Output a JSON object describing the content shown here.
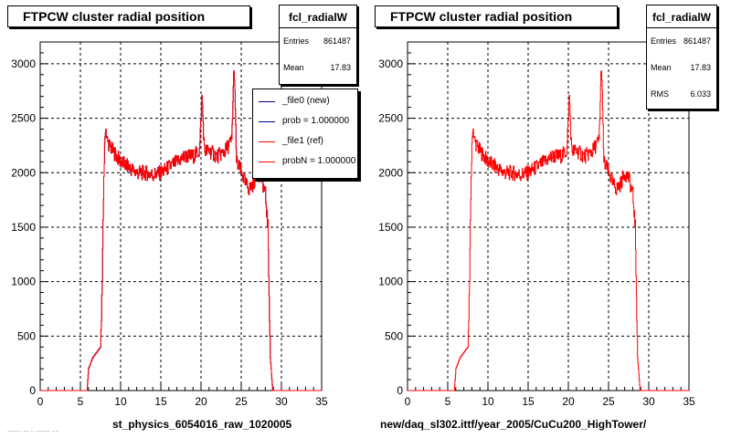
{
  "colors": {
    "new": "#00007f",
    "ref": "#ff0000",
    "grid": "#000000",
    "frame": "#000000"
  },
  "panels": [
    {
      "title": "FTPCW cluster radial position",
      "xcaption": "st_physics_6054016_raw_1020005",
      "stats": {
        "name": "fcl_radialW",
        "rows": [
          {
            "label": "Entries",
            "value": "861487"
          },
          {
            "label": "Mean",
            "value": "17.83"
          }
        ]
      },
      "legend": [
        {
          "label": "_file0 (new)",
          "color": "#00007f"
        },
        {
          "label": "prob = 1.000000",
          "color": "#00007f"
        },
        {
          "label": "_file1 (ref)",
          "color": "#ff0000"
        },
        {
          "label": "probN = 1.000000",
          "color": "#ff0000"
        }
      ]
    },
    {
      "title": "FTPCW cluster radial position",
      "xcaption": "new/daq_sl302.ittf/year_2005/CuCu200_HighTower/",
      "stats": {
        "name": "fcl_radialW",
        "rows": [
          {
            "label": "Entries",
            "value": "861487"
          },
          {
            "label": "Mean",
            "value": "17.83"
          },
          {
            "label": "RMS",
            "value": "6.033"
          }
        ]
      },
      "legend": []
    }
  ],
  "footer": "........ ... .. ........ ....",
  "chart_data": [
    {
      "type": "line",
      "title": "FTPCW cluster radial position",
      "xlabel": "st_physics_6054016_raw_1020005",
      "ylabel": "",
      "xlim": [
        0,
        35
      ],
      "ylim": [
        0,
        3200
      ],
      "xticks": [
        0,
        5,
        10,
        15,
        20,
        25,
        30,
        35
      ],
      "yticks": [
        0,
        500,
        1000,
        1500,
        2000,
        2500,
        3000
      ],
      "grid": true,
      "legend_position": "top-right",
      "series": [
        {
          "name": "_file0 (new)",
          "color": "#00007f",
          "x": [
            5.8,
            6.0,
            6.5,
            7.0,
            7.5,
            7.7,
            7.9,
            8.1,
            8.3,
            8.6,
            9.0,
            9.5,
            10,
            11,
            12,
            13,
            14,
            15,
            16,
            17,
            18,
            19,
            19.8,
            20.1,
            20.4,
            21,
            22,
            23,
            23.8,
            24.1,
            24.4,
            25,
            25.5,
            26,
            26.5,
            27,
            27.5,
            28,
            28.3,
            28.6,
            28.9
          ],
          "y": [
            0,
            200,
            300,
            350,
            400,
            1000,
            2000,
            2430,
            2300,
            2250,
            2200,
            2150,
            2100,
            2050,
            2000,
            2000,
            1980,
            2000,
            2050,
            2100,
            2150,
            2150,
            2200,
            2700,
            2200,
            2200,
            2150,
            2200,
            2300,
            3000,
            2100,
            2000,
            1900,
            1850,
            1900,
            2000,
            1950,
            1800,
            1500,
            300,
            0
          ]
        },
        {
          "name": "_file1 (ref)",
          "color": "#ff0000",
          "x": [
            5.8,
            6.0,
            6.5,
            7.0,
            7.5,
            7.7,
            7.9,
            8.1,
            8.3,
            8.6,
            9.0,
            9.5,
            10,
            11,
            12,
            13,
            14,
            15,
            16,
            17,
            18,
            19,
            19.8,
            20.1,
            20.4,
            21,
            22,
            23,
            23.8,
            24.1,
            24.4,
            25,
            25.5,
            26,
            26.5,
            27,
            27.5,
            28,
            28.3,
            28.6,
            28.9
          ],
          "y": [
            0,
            200,
            300,
            350,
            400,
            1000,
            2000,
            2430,
            2300,
            2250,
            2200,
            2150,
            2100,
            2050,
            2000,
            2000,
            1980,
            2000,
            2050,
            2100,
            2150,
            2150,
            2200,
            2700,
            2200,
            2200,
            2150,
            2200,
            2300,
            3000,
            2100,
            2000,
            1900,
            1850,
            1900,
            2000,
            1950,
            1800,
            1500,
            300,
            0
          ]
        }
      ]
    },
    {
      "type": "line",
      "title": "FTPCW cluster radial position",
      "xlabel": "new/daq_sl302.ittf/year_2005/CuCu200_HighTower/",
      "ylabel": "",
      "xlim": [
        0,
        35
      ],
      "ylim": [
        0,
        3200
      ],
      "xticks": [
        0,
        5,
        10,
        15,
        20,
        25,
        30,
        35
      ],
      "yticks": [
        0,
        500,
        1000,
        1500,
        2000,
        2500,
        3000
      ],
      "grid": true,
      "series": [
        {
          "color": "#ff0000",
          "x": [
            5.8,
            6.0,
            6.5,
            7.0,
            7.5,
            7.7,
            7.9,
            8.1,
            8.3,
            8.6,
            9.0,
            9.5,
            10,
            11,
            12,
            13,
            14,
            15,
            16,
            17,
            18,
            19,
            19.8,
            20.1,
            20.4,
            21,
            22,
            23,
            23.8,
            24.1,
            24.4,
            25,
            25.5,
            26,
            26.5,
            27,
            27.5,
            28,
            28.3,
            28.6,
            28.9
          ],
          "y": [
            0,
            200,
            300,
            350,
            400,
            1000,
            2000,
            2430,
            2300,
            2250,
            2200,
            2150,
            2100,
            2050,
            2000,
            2000,
            1980,
            2000,
            2050,
            2100,
            2150,
            2150,
            2200,
            2700,
            2200,
            2200,
            2150,
            2200,
            2300,
            3000,
            2100,
            2000,
            1900,
            1850,
            1900,
            2000,
            1950,
            1800,
            1500,
            300,
            0
          ]
        }
      ]
    }
  ]
}
